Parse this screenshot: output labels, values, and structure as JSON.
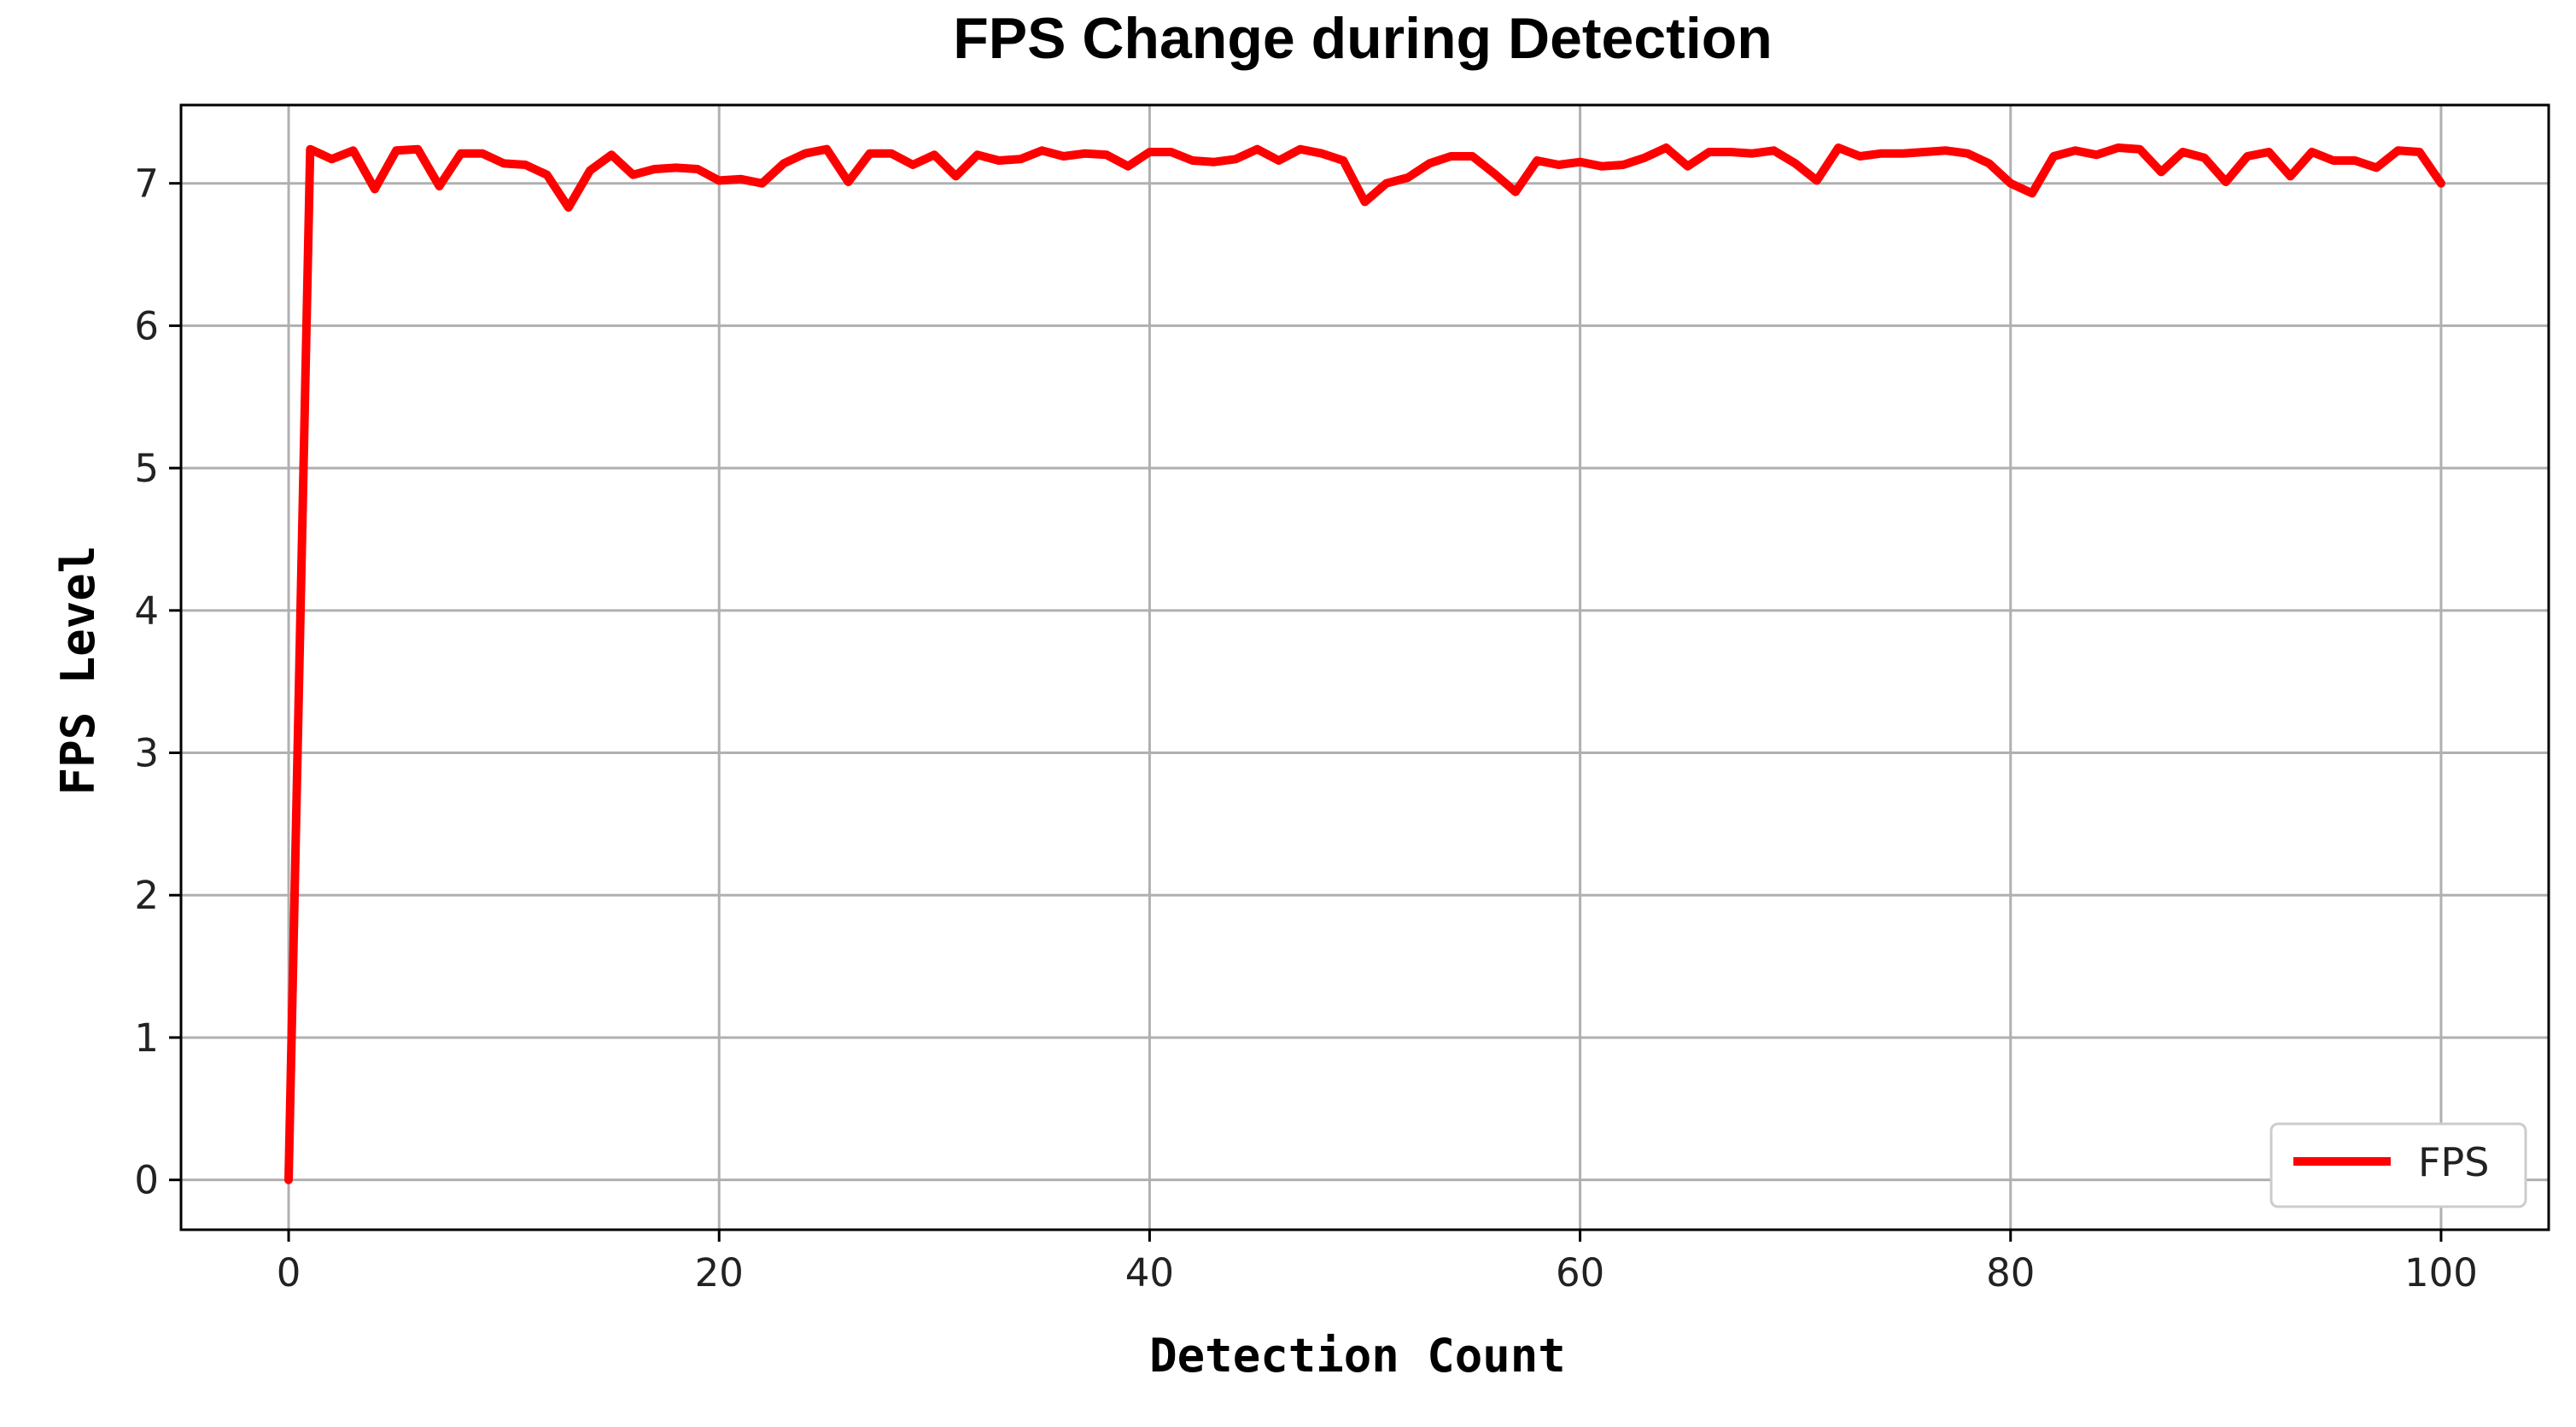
{
  "chart_data": {
    "type": "line",
    "title": "FPS Change during Detection",
    "xlabel": "Detection Count",
    "ylabel": "FPS Level",
    "xlim": [
      -5,
      105
    ],
    "ylim": [
      -0.35,
      7.55
    ],
    "x_ticks": [
      0,
      20,
      40,
      60,
      80,
      100
    ],
    "y_ticks": [
      0,
      1,
      2,
      3,
      4,
      5,
      6,
      7
    ],
    "grid": true,
    "legend_position": "lower-right",
    "series": [
      {
        "name": "FPS",
        "color": "#ff0000",
        "x": [
          0,
          1,
          2,
          3,
          4,
          5,
          6,
          7,
          8,
          9,
          10,
          11,
          12,
          13,
          14,
          15,
          16,
          17,
          18,
          19,
          20,
          21,
          22,
          23,
          24,
          25,
          26,
          27,
          28,
          29,
          30,
          31,
          32,
          33,
          34,
          35,
          36,
          37,
          38,
          39,
          40,
          41,
          42,
          43,
          44,
          45,
          46,
          47,
          48,
          49,
          50,
          51,
          52,
          53,
          54,
          55,
          56,
          57,
          58,
          59,
          60,
          61,
          62,
          63,
          64,
          65,
          66,
          67,
          68,
          69,
          70,
          71,
          72,
          73,
          74,
          75,
          76,
          77,
          78,
          79,
          80,
          81,
          82,
          83,
          84,
          85,
          86,
          87,
          88,
          89,
          90,
          91,
          92,
          93,
          94,
          95,
          96,
          97,
          98,
          99,
          100
        ],
        "values": [
          0.0,
          7.24,
          7.17,
          7.23,
          6.96,
          7.23,
          7.24,
          6.98,
          7.21,
          7.21,
          7.14,
          7.13,
          7.06,
          6.83,
          7.09,
          7.2,
          7.06,
          7.1,
          7.11,
          7.1,
          7.02,
          7.03,
          7.0,
          7.14,
          7.21,
          7.24,
          7.01,
          7.21,
          7.21,
          7.13,
          7.2,
          7.05,
          7.2,
          7.16,
          7.17,
          7.23,
          7.19,
          7.21,
          7.2,
          7.12,
          7.22,
          7.22,
          7.16,
          7.15,
          7.17,
          7.24,
          7.16,
          7.24,
          7.21,
          7.16,
          6.87,
          7.0,
          7.04,
          7.14,
          7.19,
          7.19,
          7.07,
          6.94,
          7.16,
          7.13,
          7.15,
          7.12,
          7.13,
          7.18,
          7.25,
          7.12,
          7.22,
          7.22,
          7.21,
          7.23,
          7.14,
          7.02,
          7.25,
          7.19,
          7.21,
          7.21,
          7.22,
          7.23,
          7.21,
          7.14,
          7.0,
          6.93,
          7.19,
          7.23,
          7.2,
          7.25,
          7.24,
          7.08,
          7.22,
          7.18,
          7.01,
          7.19,
          7.22,
          7.05,
          7.22,
          7.16,
          7.16,
          7.11,
          7.23,
          7.22,
          7.0
        ]
      }
    ]
  }
}
